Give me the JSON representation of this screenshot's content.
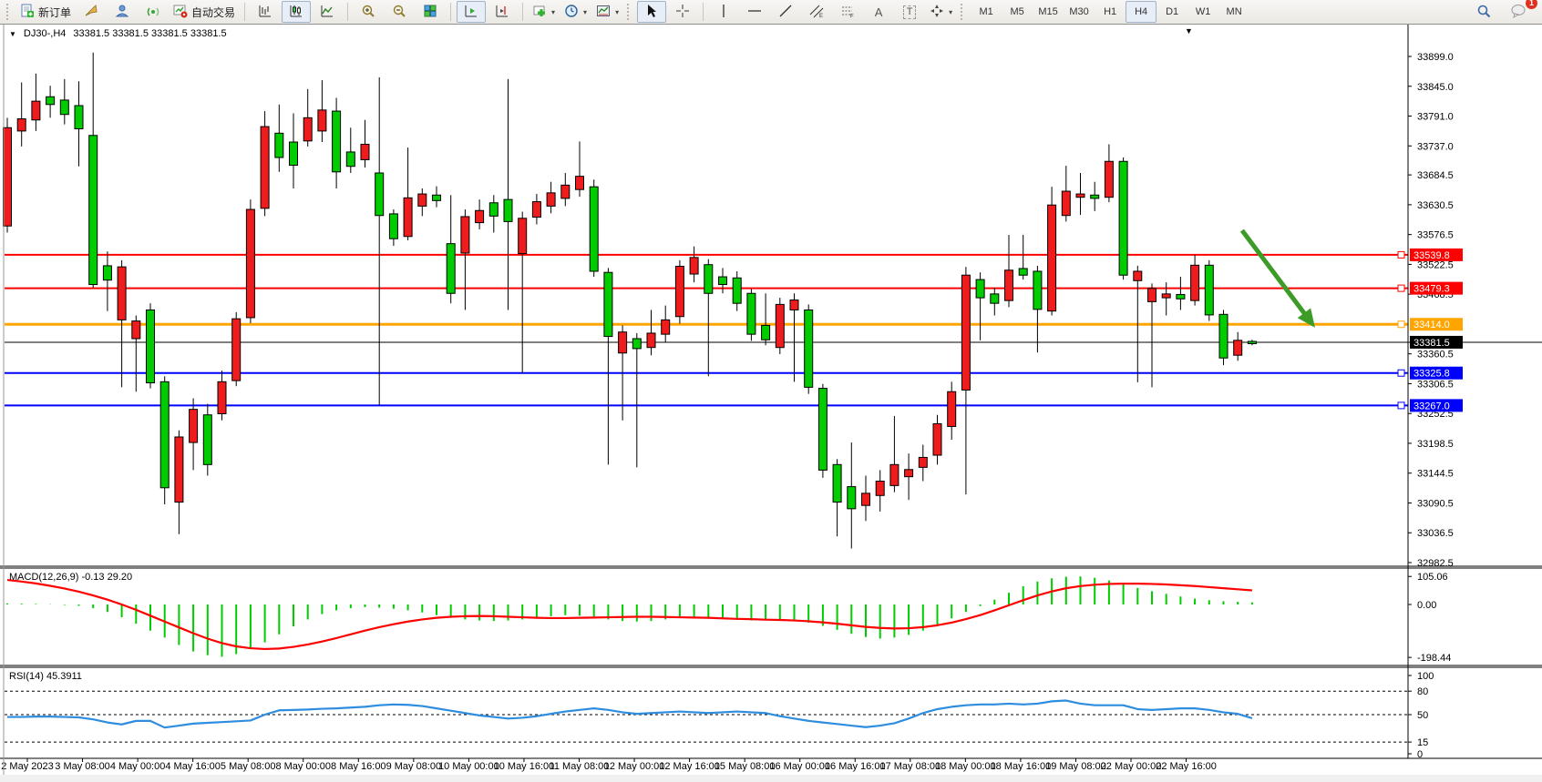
{
  "toolbar": {
    "new_order_label": "新订单",
    "auto_trading_label": "自动交易",
    "timeframes": [
      "M1",
      "M5",
      "M15",
      "M30",
      "H1",
      "H4",
      "D1",
      "W1",
      "MN"
    ],
    "active_timeframe": "H4",
    "notification_count": "1"
  },
  "icons": {
    "dropdown_caret": "▾",
    "symbol_dropdown": "▼",
    "scroll_marker": "▼",
    "text_tool_glyph": "A",
    "label_tool_glyph": "T"
  },
  "chart": {
    "symbol_label": "DJ30-,H4",
    "ohlc_text": "33381.5 33381.5 33381.5 33381.5"
  },
  "chart_data": {
    "type": "candlestick",
    "symbol": "DJ30-",
    "timeframe": "H4",
    "bull_color": "#ee1c1c",
    "bear_color": "#00cc00",
    "wick_color": "#000000",
    "price_axis_ticks": [
      33899.0,
      33845.0,
      33791.0,
      33737.0,
      33684.5,
      33630.5,
      33576.5,
      33522.5,
      33468.5,
      33360.5,
      33306.5,
      33252.5,
      33198.5,
      33144.5,
      33090.5,
      33036.5,
      32982.5
    ],
    "price_axis_top": 33899.0,
    "price_axis_bottom": 32982.5,
    "current_price": {
      "value": "33381.5",
      "color": "#000000"
    },
    "hlines": [
      {
        "price": 33539.8,
        "label": "33539.8",
        "color": "#ff0000",
        "width": 2
      },
      {
        "price": 33479.3,
        "label": "33479.3",
        "color": "#ff0000",
        "width": 2
      },
      {
        "price": 33414.0,
        "label": "33414.0",
        "color": "#ffa500",
        "width": 3
      },
      {
        "price": 33325.8,
        "label": "33325.8",
        "color": "#0000ff",
        "width": 2
      },
      {
        "price": 33267.0,
        "label": "33267.0",
        "color": "#0000ff",
        "width": 2
      }
    ],
    "annotation_arrow": {
      "bar1": 86.3,
      "price1": 33584,
      "bar2": 91.4,
      "price2": 33408,
      "color": "#3d9b28"
    },
    "time_labels": [
      "2 May 2023",
      "3 May 08:00",
      "4 May 00:00",
      "4 May 16:00",
      "5 May 08:00",
      "8 May 00:00",
      "8 May 16:00",
      "9 May 08:00",
      "10 May 00:00",
      "10 May 16:00",
      "11 May 08:00",
      "12 May 00:00",
      "12 May 16:00",
      "15 May 08:00",
      "16 May 00:00",
      "16 May 16:00",
      "17 May 08:00",
      "18 May 00:00",
      "18 May 16:00",
      "19 May 08:00",
      "22 May 00:00",
      "22 May 16:00"
    ],
    "candles_ohlc": [
      [
        33592,
        33788,
        33580,
        33770
      ],
      [
        33764,
        33852,
        33736,
        33786
      ],
      [
        33784,
        33868,
        33764,
        33818
      ],
      [
        33826,
        33846,
        33788,
        33812
      ],
      [
        33820,
        33858,
        33776,
        33794
      ],
      [
        33810,
        33854,
        33700,
        33768
      ],
      [
        33756,
        33906,
        33480,
        33486
      ],
      [
        33520,
        33546,
        33438,
        33494
      ],
      [
        33422,
        33530,
        33300,
        33518
      ],
      [
        33388,
        33430,
        33292,
        33420
      ],
      [
        33440,
        33452,
        33298,
        33308
      ],
      [
        33310,
        33320,
        33088,
        33118
      ],
      [
        33092,
        33222,
        33034,
        33210
      ],
      [
        33200,
        33280,
        33150,
        33260
      ],
      [
        33250,
        33270,
        33140,
        33160
      ],
      [
        33252,
        33330,
        33240,
        33310
      ],
      [
        33312,
        33436,
        33302,
        33424
      ],
      [
        33426,
        33640,
        33416,
        33622
      ],
      [
        33624,
        33800,
        33610,
        33772
      ],
      [
        33760,
        33812,
        33690,
        33716
      ],
      [
        33744,
        33796,
        33660,
        33702
      ],
      [
        33746,
        33840,
        33736,
        33788
      ],
      [
        33764,
        33856,
        33744,
        33802
      ],
      [
        33800,
        33824,
        33660,
        33690
      ],
      [
        33726,
        33770,
        33688,
        33700
      ],
      [
        33712,
        33784,
        33698,
        33740
      ],
      [
        33688,
        33861,
        33268,
        33611
      ],
      [
        33614,
        33622,
        33556,
        33569
      ],
      [
        33573,
        33734,
        33566,
        33643
      ],
      [
        33628,
        33660,
        33610,
        33650
      ],
      [
        33648,
        33664,
        33626,
        33638
      ],
      [
        33560,
        33648,
        33452,
        33470
      ],
      [
        33543,
        33622,
        33440,
        33609
      ],
      [
        33598,
        33640,
        33586,
        33620
      ],
      [
        33634,
        33648,
        33580,
        33610
      ],
      [
        33640,
        33858,
        33440,
        33600
      ],
      [
        33542,
        33618,
        33325,
        33606
      ],
      [
        33608,
        33650,
        33595,
        33636
      ],
      [
        33628,
        33672,
        33615,
        33652
      ],
      [
        33642,
        33688,
        33628,
        33666
      ],
      [
        33658,
        33745,
        33645,
        33682
      ],
      [
        33663,
        33676,
        33500,
        33510
      ],
      [
        33508,
        33516,
        33160,
        33392
      ],
      [
        33362,
        33412,
        33240,
        33400
      ],
      [
        33388,
        33398,
        33155,
        33370
      ],
      [
        33372,
        33440,
        33358,
        33398
      ],
      [
        33396,
        33448,
        33382,
        33422
      ],
      [
        33428,
        33530,
        33415,
        33519
      ],
      [
        33505,
        33555,
        33490,
        33535
      ],
      [
        33522,
        33532,
        33320,
        33470
      ],
      [
        33500,
        33516,
        33470,
        33486
      ],
      [
        33498,
        33510,
        33438,
        33452
      ],
      [
        33470,
        33478,
        33384,
        33396
      ],
      [
        33412,
        33470,
        33376,
        33386
      ],
      [
        33372,
        33462,
        33360,
        33450
      ],
      [
        33440,
        33470,
        33310,
        33458
      ],
      [
        33440,
        33450,
        33288,
        33300
      ],
      [
        33298,
        33306,
        33136,
        33150
      ],
      [
        33160,
        33170,
        33030,
        33092
      ],
      [
        33120,
        33200,
        33008,
        33080
      ],
      [
        33086,
        33140,
        33058,
        33108
      ],
      [
        33104,
        33150,
        33075,
        33130
      ],
      [
        33122,
        33248,
        33110,
        33160
      ],
      [
        33138,
        33180,
        33096,
        33151
      ],
      [
        33155,
        33196,
        33130,
        33173
      ],
      [
        33177,
        33250,
        33160,
        33234
      ],
      [
        33229,
        33310,
        33205,
        33292
      ],
      [
        33295,
        33518,
        33106,
        33503
      ],
      [
        33495,
        33508,
        33385,
        33462
      ],
      [
        33469,
        33480,
        33430,
        33452
      ],
      [
        33457,
        33576,
        33445,
        33512
      ],
      [
        33515,
        33576,
        33495,
        33503
      ],
      [
        33510,
        33520,
        33363,
        33441
      ],
      [
        33438,
        33663,
        33430,
        33630
      ],
      [
        33611,
        33701,
        33600,
        33655
      ],
      [
        33644,
        33688,
        33612,
        33650
      ],
      [
        33648,
        33672,
        33619,
        33642
      ],
      [
        33644,
        33740,
        33635,
        33709
      ],
      [
        33709,
        33716,
        33495,
        33503
      ],
      [
        33493,
        33520,
        33309,
        33510
      ],
      [
        33455,
        33488,
        33300,
        33479
      ],
      [
        33462,
        33490,
        33430,
        33469
      ],
      [
        33468,
        33500,
        33440,
        33460
      ],
      [
        33457,
        33540,
        33448,
        33521
      ],
      [
        33521,
        33530,
        33420,
        33431
      ],
      [
        33432,
        33440,
        33340,
        33353
      ],
      [
        33358,
        33400,
        33348,
        33385
      ],
      [
        33383,
        33386,
        33376,
        33379
      ]
    ],
    "macd": {
      "label": "MACD(12,26,9)",
      "values_text": "-0.13 29.20",
      "axis": {
        "max": "105.06",
        "zero": "0.00",
        "min": "-198.44"
      },
      "histogram_color": "#00cc00",
      "signal_color": "#ff0000",
      "histogram": [
        4,
        3,
        2,
        1,
        -2,
        -5,
        -14,
        -28,
        -48,
        -72,
        -98,
        -124,
        -152,
        -176,
        -190,
        -196,
        -186,
        -166,
        -142,
        -112,
        -82,
        -56,
        -36,
        -22,
        -14,
        -10,
        -12,
        -16,
        -22,
        -30,
        -40,
        -50,
        -56,
        -60,
        -62,
        -60,
        -56,
        -50,
        -44,
        -40,
        -42,
        -48,
        -56,
        -62,
        -64,
        -62,
        -56,
        -50,
        -48,
        -50,
        -54,
        -58,
        -60,
        -58,
        -56,
        -60,
        -68,
        -80,
        -95,
        -110,
        -122,
        -128,
        -124,
        -114,
        -98,
        -78,
        -52,
        -28,
        -6,
        18,
        44,
        68,
        86,
        98,
        104,
        105,
        100,
        90,
        76,
        62,
        50,
        40,
        30,
        22,
        16,
        12,
        10,
        8
      ],
      "signal": [
        92,
        86,
        79,
        70,
        60,
        48,
        34,
        18,
        0,
        -20,
        -42,
        -64,
        -86,
        -108,
        -128,
        -145,
        -157,
        -164,
        -167,
        -165,
        -159,
        -150,
        -139,
        -126,
        -112,
        -98,
        -85,
        -74,
        -64,
        -56,
        -50,
        -46,
        -44,
        -43,
        -44,
        -46,
        -48,
        -50,
        -51,
        -51,
        -50,
        -49,
        -48,
        -47,
        -46,
        -46,
        -47,
        -48,
        -49,
        -50,
        -52,
        -54,
        -55,
        -57,
        -58,
        -60,
        -63,
        -67,
        -72,
        -78,
        -84,
        -88,
        -90,
        -89,
        -85,
        -78,
        -68,
        -55,
        -40,
        -22,
        -3,
        16,
        34,
        49,
        61,
        69,
        74,
        77,
        78,
        78,
        77,
        75,
        72,
        69,
        65,
        61,
        57,
        53
      ]
    },
    "rsi": {
      "label": "RSI(14)",
      "value_text": "45.3911",
      "color": "#2e8dde",
      "levels": [
        80,
        50,
        15
      ],
      "axis_labels": [
        "100",
        "80",
        "50",
        "15",
        "0"
      ],
      "values": [
        47,
        47,
        47.5,
        47.5,
        47,
        46.5,
        44,
        40,
        37.5,
        42,
        42,
        33.5,
        36,
        38.5,
        39.5,
        40.5,
        41.5,
        42.5,
        50,
        55.5,
        56,
        56.5,
        57.5,
        58,
        59,
        60,
        62,
        63,
        62.5,
        61,
        58,
        55,
        52,
        49,
        47,
        45,
        46,
        48,
        51,
        54,
        56,
        58,
        56,
        53,
        51,
        52,
        53,
        54,
        53,
        52,
        53,
        54,
        53,
        52,
        48,
        45,
        42,
        40,
        38,
        36,
        34,
        36,
        39,
        45,
        52,
        57,
        60,
        62,
        63,
        63,
        64,
        63,
        64,
        67,
        68,
        64,
        62,
        62,
        62,
        57,
        56,
        57,
        58,
        58,
        56,
        53,
        51,
        45.4
      ]
    }
  }
}
